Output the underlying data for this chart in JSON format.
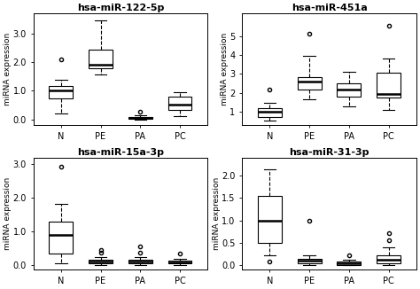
{
  "panels": [
    {
      "title": "hsa-miR-122-5p",
      "ylabel": "miRNA expression",
      "ylim": [
        -0.2,
        3.7
      ],
      "yticks": [
        0.0,
        1.0,
        2.0,
        3.0
      ],
      "yticklabels": [
        "0.0",
        "1.0",
        "2.0",
        "3.0"
      ],
      "groups": [
        "N",
        "PE",
        "PA",
        "PC"
      ],
      "boxes": [
        {
          "q1": 0.72,
          "median": 1.0,
          "q3": 1.18,
          "whislo": 0.22,
          "whishi": 1.38,
          "fliers": [
            2.1
          ]
        },
        {
          "q1": 1.78,
          "median": 1.92,
          "q3": 2.42,
          "whislo": 1.58,
          "whishi": 3.45,
          "fliers": []
        },
        {
          "q1": 0.01,
          "median": 0.04,
          "q3": 0.09,
          "whislo": 0.0,
          "whishi": 0.14,
          "fliers": [
            0.28
          ]
        },
        {
          "q1": 0.32,
          "median": 0.52,
          "q3": 0.78,
          "whislo": 0.12,
          "whishi": 0.95,
          "fliers": []
        }
      ]
    },
    {
      "title": "hsa-miR-451a",
      "ylabel": "miRNA expression",
      "ylim": [
        0.3,
        6.2
      ],
      "yticks": [
        1,
        2,
        3,
        4,
        5
      ],
      "yticklabels": [
        "1",
        "2",
        "3",
        "4",
        "5"
      ],
      "groups": [
        "N",
        "PE",
        "PA",
        "PC"
      ],
      "boxes": [
        {
          "q1": 0.75,
          "median": 1.0,
          "q3": 1.18,
          "whislo": 0.52,
          "whishi": 1.5,
          "fliers": [
            2.2
          ]
        },
        {
          "q1": 2.2,
          "median": 2.6,
          "q3": 2.85,
          "whislo": 1.65,
          "whishi": 3.95,
          "fliers": [
            5.1
          ]
        },
        {
          "q1": 1.82,
          "median": 2.2,
          "q3": 2.52,
          "whislo": 1.3,
          "whishi": 3.1,
          "fliers": []
        },
        {
          "q1": 1.78,
          "median": 1.95,
          "q3": 3.05,
          "whislo": 1.1,
          "whishi": 3.82,
          "fliers": [
            5.55
          ]
        }
      ]
    },
    {
      "title": "hsa-miR-15a-3p",
      "ylabel": "miRNA expression",
      "ylim": [
        -0.15,
        3.2
      ],
      "yticks": [
        0.0,
        1.0,
        2.0,
        3.0
      ],
      "yticklabels": [
        "0.0",
        "1.0",
        "2.0",
        "3.0"
      ],
      "groups": [
        "N",
        "PE",
        "PA",
        "PC"
      ],
      "boxes": [
        {
          "q1": 0.32,
          "median": 0.88,
          "q3": 1.28,
          "whislo": 0.03,
          "whishi": 1.82,
          "fliers": [
            2.92
          ]
        },
        {
          "q1": 0.04,
          "median": 0.09,
          "q3": 0.14,
          "whislo": 0.0,
          "whishi": 0.22,
          "fliers": [
            0.35,
            0.45
          ]
        },
        {
          "q1": 0.04,
          "median": 0.09,
          "q3": 0.14,
          "whislo": 0.0,
          "whishi": 0.22,
          "fliers": [
            0.35,
            0.55
          ]
        },
        {
          "q1": 0.03,
          "median": 0.07,
          "q3": 0.12,
          "whislo": 0.0,
          "whishi": 0.18,
          "fliers": [
            0.32
          ]
        }
      ]
    },
    {
      "title": "hsa-miR-31-3p",
      "ylabel": "miRNA expression",
      "ylim": [
        -0.1,
        2.4
      ],
      "yticks": [
        0.0,
        0.5,
        1.0,
        1.5,
        2.0
      ],
      "yticklabels": [
        "0.0",
        "0.5",
        "1.0",
        "1.5",
        "2.0"
      ],
      "groups": [
        "N",
        "PE",
        "PA",
        "PC"
      ],
      "boxes": [
        {
          "q1": 0.5,
          "median": 1.0,
          "q3": 1.55,
          "whislo": 0.22,
          "whishi": 2.15,
          "fliers": [
            0.08
          ]
        },
        {
          "q1": 0.05,
          "median": 0.1,
          "q3": 0.15,
          "whislo": 0.0,
          "whishi": 0.22,
          "fliers": [
            1.0
          ]
        },
        {
          "q1": 0.01,
          "median": 0.04,
          "q3": 0.08,
          "whislo": 0.0,
          "whishi": 0.12,
          "fliers": [
            0.22
          ]
        },
        {
          "q1": 0.05,
          "median": 0.12,
          "q3": 0.22,
          "whislo": 0.0,
          "whishi": 0.4,
          "fliers": [
            0.55,
            0.72
          ]
        }
      ]
    }
  ],
  "box_color": "#ffffff",
  "median_color": "#000000",
  "whisker_color": "#000000",
  "flier_color": "#000000"
}
